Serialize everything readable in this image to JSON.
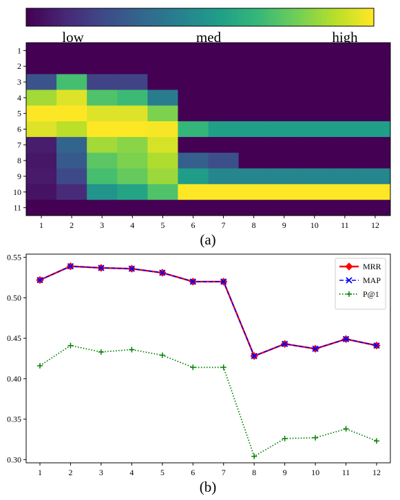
{
  "chart_data": [
    {
      "type": "heatmap",
      "caption": "(a)",
      "colormap": "viridis",
      "colorbar_labels": [
        "low",
        "med",
        "high"
      ],
      "x_categories": [
        "1",
        "2",
        "3",
        "4",
        "5",
        "6",
        "7",
        "8",
        "9",
        "10",
        "11",
        "12"
      ],
      "y_categories": [
        "1",
        "2",
        "3",
        "4",
        "5",
        "6",
        "7",
        "8",
        "9",
        "10",
        "11"
      ],
      "values": [
        [
          0.0,
          0.0,
          0.0,
          0.0,
          0.0,
          0.0,
          0.0,
          0.0,
          0.0,
          0.0,
          0.0,
          0.0
        ],
        [
          0.0,
          0.0,
          0.0,
          0.0,
          0.0,
          0.0,
          0.0,
          0.0,
          0.0,
          0.0,
          0.0,
          0.0
        ],
        [
          0.26,
          0.7,
          0.2,
          0.2,
          0.0,
          0.0,
          0.0,
          0.0,
          0.0,
          0.0,
          0.0,
          0.0
        ],
        [
          0.86,
          0.95,
          0.72,
          0.68,
          0.42,
          0.0,
          0.0,
          0.0,
          0.0,
          0.0,
          0.0,
          0.0
        ],
        [
          1.0,
          1.0,
          0.95,
          0.95,
          0.8,
          0.0,
          0.0,
          0.0,
          0.0,
          0.0,
          0.0,
          0.0
        ],
        [
          0.95,
          0.9,
          1.0,
          1.0,
          0.99,
          0.66,
          0.56,
          0.56,
          0.56,
          0.56,
          0.56,
          0.56
        ],
        [
          0.08,
          0.32,
          0.86,
          0.82,
          0.94,
          0.0,
          0.0,
          0.0,
          0.0,
          0.0,
          0.0,
          0.0
        ],
        [
          0.06,
          0.28,
          0.74,
          0.8,
          0.88,
          0.3,
          0.24,
          0.0,
          0.0,
          0.0,
          0.0,
          0.0
        ],
        [
          0.07,
          0.22,
          0.7,
          0.76,
          0.85,
          0.55,
          0.46,
          0.46,
          0.46,
          0.46,
          0.46,
          0.46
        ],
        [
          0.05,
          0.12,
          0.52,
          0.58,
          0.72,
          1.0,
          1.0,
          1.0,
          1.0,
          1.0,
          1.0,
          1.0
        ],
        [
          0.0,
          0.0,
          0.0,
          0.0,
          0.0,
          0.0,
          0.0,
          0.0,
          0.0,
          0.0,
          0.0,
          0.0
        ]
      ]
    },
    {
      "type": "line",
      "caption": "(b)",
      "x": [
        1,
        2,
        3,
        4,
        5,
        6,
        7,
        8,
        9,
        10,
        11,
        12
      ],
      "xlim": [
        0.55,
        12.45
      ],
      "ylim": [
        0.296,
        0.554
      ],
      "y_ticks": [
        "0.30",
        "0.35",
        "0.40",
        "0.45",
        "0.50",
        "0.55"
      ],
      "x_ticks": [
        "1",
        "2",
        "3",
        "4",
        "5",
        "6",
        "7",
        "8",
        "9",
        "10",
        "11",
        "12"
      ],
      "legend_position": "top-right",
      "series": [
        {
          "name": "MRR",
          "color": "#ff0000",
          "marker": "diamond",
          "style": "solid",
          "values": [
            0.522,
            0.539,
            0.537,
            0.536,
            0.531,
            0.52,
            0.52,
            0.428,
            0.443,
            0.437,
            0.449,
            0.441
          ]
        },
        {
          "name": "MAP",
          "color": "#0000ff",
          "marker": "x",
          "style": "dashed",
          "values": [
            0.522,
            0.539,
            0.537,
            0.536,
            0.531,
            0.52,
            0.52,
            0.428,
            0.443,
            0.437,
            0.449,
            0.441
          ]
        },
        {
          "name": "P@1",
          "color": "#008000",
          "marker": "plus",
          "style": "dotted",
          "values": [
            0.416,
            0.441,
            0.433,
            0.436,
            0.429,
            0.414,
            0.414,
            0.304,
            0.326,
            0.327,
            0.338,
            0.323
          ]
        }
      ]
    }
  ]
}
